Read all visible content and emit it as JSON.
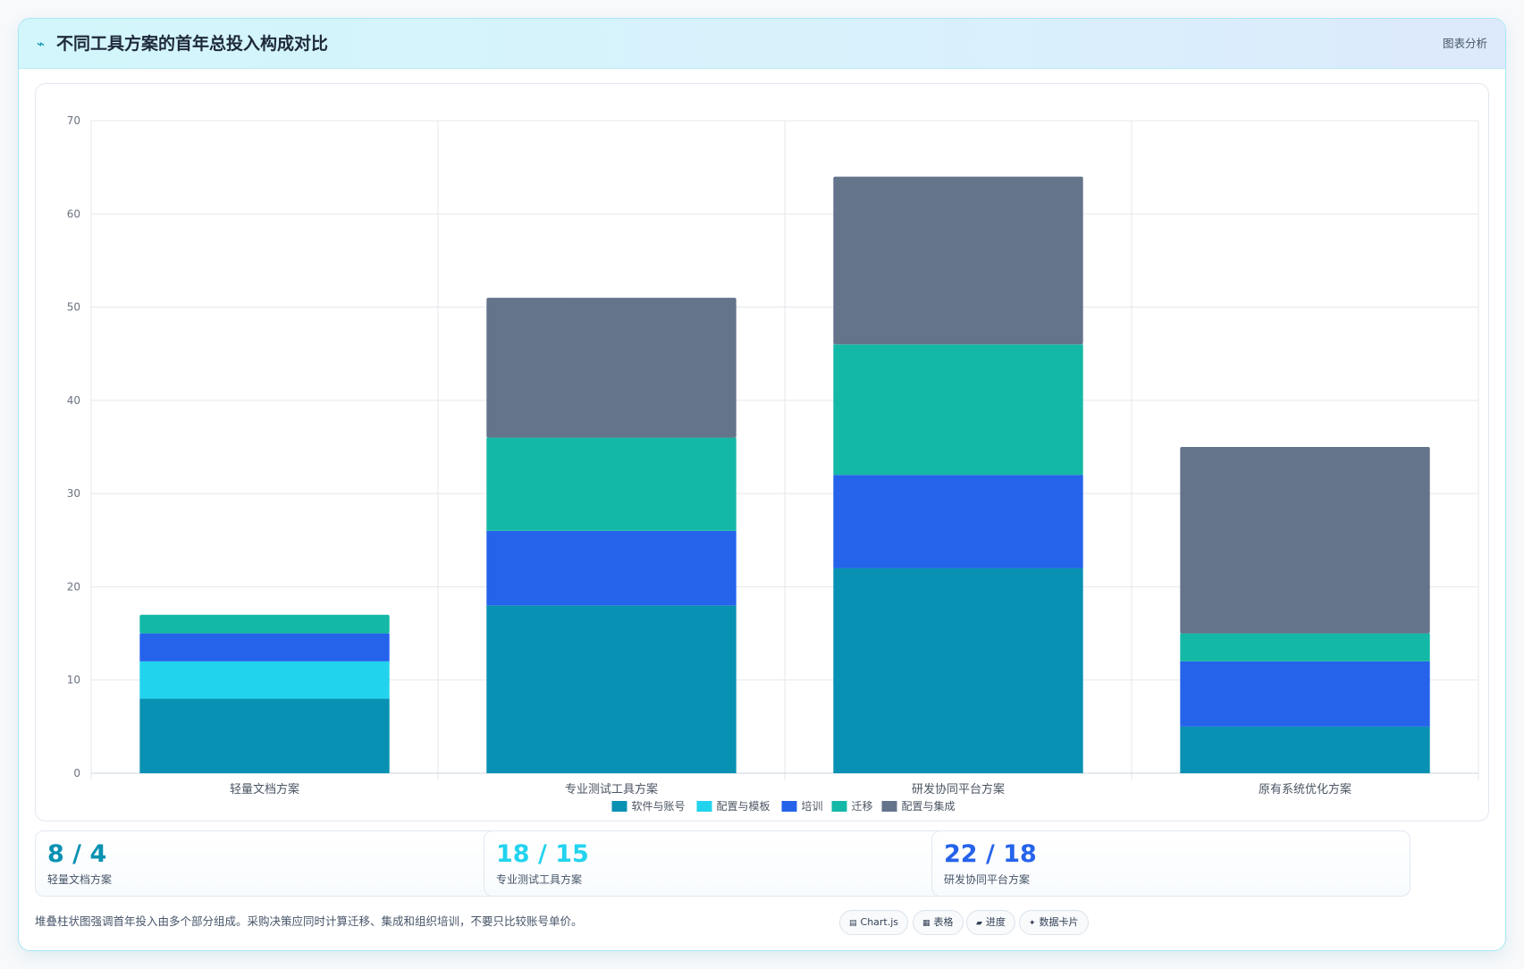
{
  "header": {
    "icon": "chart-line-icon",
    "title": "不同工具方案的首年总投入构成对比",
    "tag": "图表分析"
  },
  "chart_data": {
    "type": "bar",
    "stacked": true,
    "categories": [
      "轻量文档方案",
      "专业测试工具方案",
      "研发协同平台方案",
      "原有系统优化方案"
    ],
    "series": [
      {
        "name": "软件与账号",
        "color": "#0891b2",
        "values": [
          8,
          18,
          22,
          5
        ]
      },
      {
        "name": "配置与模板",
        "color": "#22d3ee",
        "values": [
          4,
          0,
          0,
          0
        ]
      },
      {
        "name": "培训",
        "color": "#2563eb",
        "values": [
          3,
          8,
          10,
          7
        ]
      },
      {
        "name": "迁移",
        "color": "#14b8a6",
        "values": [
          2,
          10,
          14,
          3
        ]
      },
      {
        "name": "配置与集成",
        "color": "#64748b",
        "values": [
          0,
          15,
          18,
          20
        ]
      }
    ],
    "ylim": [
      0,
      70
    ],
    "yticks": [
      "0",
      "10",
      "20",
      "30",
      "40",
      "50",
      "60",
      "70"
    ],
    "grid": true,
    "legend_position": "bottom"
  },
  "stats": [
    {
      "value": "8 / 4",
      "label": "轻量文档方案",
      "color": "#0891b2"
    },
    {
      "value": "18 / 15",
      "label": "专业测试工具方案",
      "color": "#22d3ee"
    },
    {
      "value": "22 / 18",
      "label": "研发协同平台方案",
      "color": "#2563eb"
    }
  ],
  "footer": {
    "note": "堆叠柱状图强调首年投入由多个部分组成。采购决策应同时计算迁移、集成和组织培训，不要只比较账号单价。",
    "chips": [
      {
        "icon": "chart-icon",
        "glyph": "▤",
        "label": "Chart.js"
      },
      {
        "icon": "table-icon",
        "glyph": "▦",
        "label": "表格"
      },
      {
        "icon": "progress-icon",
        "glyph": "▰",
        "label": "进度"
      },
      {
        "icon": "sparkle-icon",
        "glyph": "✦",
        "label": "数据卡片"
      }
    ]
  }
}
